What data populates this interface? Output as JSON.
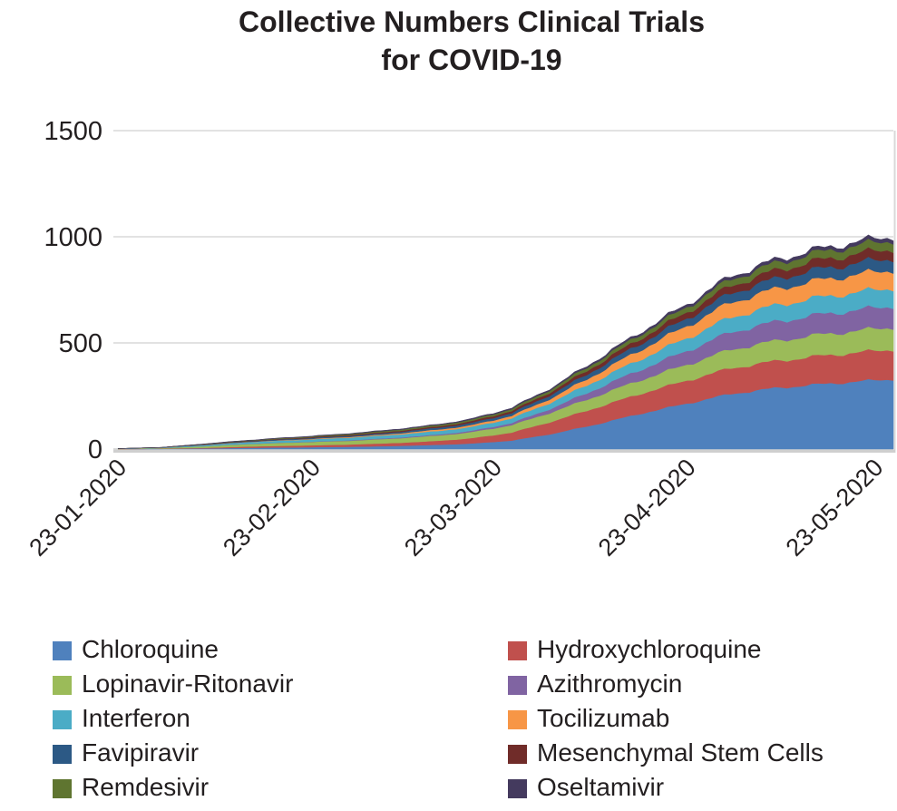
{
  "title": "Collective Numbers Clinical Trials\nfor COVID-19",
  "colors": {
    "text": "#231F20",
    "gridline": "#D9D9D9",
    "baseline": "#CFCFCF"
  },
  "chart_data": {
    "type": "area",
    "stacked": true,
    "title": "Collective Numbers Clinical Trials for COVID-19",
    "xlabel": "",
    "ylabel": "",
    "ylim": [
      0,
      1500
    ],
    "y_ticks": [
      0,
      500,
      1000,
      1500
    ],
    "grid": true,
    "legend_position": "bottom",
    "x_tick_days": [
      0,
      31,
      60,
      91,
      121
    ],
    "x_tick_labels": [
      "23-01-2020",
      "23-02-2020",
      "23-03-2020",
      "23-04-2020",
      "23-05-2020"
    ],
    "sample_days": [
      0,
      7,
      14,
      21,
      28,
      35,
      42,
      49,
      56,
      63,
      70,
      77,
      84,
      91,
      98,
      105,
      112,
      119,
      124
    ],
    "series": [
      {
        "name": "Chloroquine",
        "color": "#4F81BD",
        "values": [
          0,
          1,
          3,
          6,
          8,
          10,
          13,
          18,
          25,
          40,
          75,
          120,
          170,
          215,
          260,
          287,
          305,
          320,
          330
        ]
      },
      {
        "name": "Hydroxychloroquine",
        "color": "#C0504D",
        "values": [
          0,
          1,
          3,
          6,
          8,
          10,
          13,
          17,
          24,
          38,
          60,
          80,
          95,
          108,
          121,
          127,
          133,
          137,
          140
        ]
      },
      {
        "name": "Lopinavir-Ritonavir",
        "color": "#9BBB59",
        "values": [
          1,
          3,
          8,
          12,
          15,
          17,
          20,
          24,
          28,
          35,
          45,
          55,
          65,
          75,
          88,
          95,
          100,
          103,
          105
        ]
      },
      {
        "name": "Azithromycin",
        "color": "#8064A2",
        "values": [
          0,
          0,
          0,
          1,
          1,
          2,
          3,
          4,
          6,
          10,
          20,
          35,
          50,
          65,
          82,
          90,
          95,
          98,
          100
        ]
      },
      {
        "name": "Interferon",
        "color": "#4BACC6",
        "values": [
          1,
          2,
          5,
          8,
          10,
          12,
          14,
          16,
          18,
          22,
          30,
          40,
          50,
          60,
          70,
          77,
          81,
          84,
          85
        ]
      },
      {
        "name": "Tocilizumab",
        "color": "#F79646",
        "values": [
          0,
          0,
          1,
          1,
          2,
          3,
          4,
          6,
          8,
          12,
          20,
          32,
          45,
          57,
          70,
          77,
          81,
          84,
          85
        ]
      },
      {
        "name": "Favipiravir",
        "color": "#2C5985",
        "values": [
          0,
          1,
          2,
          3,
          4,
          5,
          6,
          8,
          10,
          13,
          18,
          24,
          30,
          36,
          44,
          48,
          52,
          54,
          55
        ]
      },
      {
        "name": "Mesenchymal Stem Cells",
        "color": "#702C29",
        "values": [
          0,
          0,
          1,
          2,
          3,
          4,
          5,
          6,
          8,
          10,
          14,
          19,
          24,
          29,
          35,
          39,
          42,
          44,
          45
        ]
      },
      {
        "name": "Remdesivir",
        "color": "#5F7530",
        "values": [
          0,
          0,
          1,
          2,
          3,
          4,
          5,
          6,
          7,
          9,
          12,
          16,
          20,
          25,
          30,
          34,
          37,
          39,
          40
        ]
      },
      {
        "name": "Oseltamivir",
        "color": "#443A5E",
        "values": [
          0,
          0,
          1,
          1,
          2,
          2,
          3,
          3,
          4,
          5,
          6,
          8,
          10,
          12,
          14,
          15,
          16,
          17,
          18
        ]
      }
    ]
  }
}
